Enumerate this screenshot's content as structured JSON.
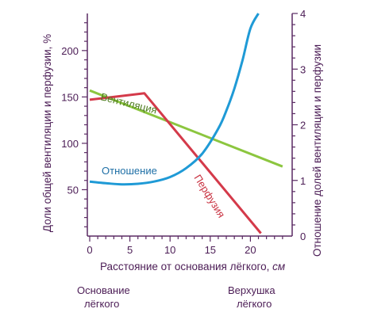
{
  "chart_data": {
    "type": "line",
    "colors": {
      "axis": "#5a2a63",
      "ventilation": "#8cc63f",
      "perfusion": "#d43a4a",
      "ratio": "#1f9ad6",
      "ventilation_label": "#4f7d20",
      "perfusion_label": "#c8303f",
      "ratio_label": "#1e6fa6"
    },
    "x_axis": {
      "label": "Расстояние от основания лёгкого, ",
      "unit": "см",
      "range": [
        0,
        24
      ],
      "ticks": [
        "0",
        "5",
        "10",
        "15",
        "20"
      ],
      "tick_values": [
        0,
        5,
        10,
        15,
        20
      ],
      "minor_tick_step": 1
    },
    "y_left": {
      "label": "Доли общей вентиляции и перфузии, %",
      "range": [
        0,
        240
      ],
      "ticks": [
        "50",
        "100",
        "150",
        "200"
      ],
      "tick_values": [
        50,
        100,
        150,
        200
      ],
      "minor_tick_step": 10
    },
    "y_right": {
      "label": "Отношение долей вентиляции и перфузии",
      "range": [
        0,
        4
      ],
      "ticks": [
        "0",
        "1",
        "2",
        "3",
        "4"
      ],
      "tick_values": [
        0,
        1,
        2,
        3,
        4
      ],
      "minor_tick_step": 0.2
    },
    "end_labels": {
      "base_line1": "Основание",
      "base_line2": "лёгкого",
      "apex_line1": "Верхушка",
      "apex_line2": "лёгкого"
    },
    "series": [
      {
        "name": "Вентиляция",
        "axis": "left",
        "x": [
          0,
          24
        ],
        "y": [
          157,
          75
        ]
      },
      {
        "name": "Перфузия",
        "axis": "left",
        "x": [
          0,
          6.8,
          21.3
        ],
        "y": [
          147,
          154,
          3
        ]
      },
      {
        "name": "Отношение",
        "axis": "right",
        "x": [
          0,
          2,
          4,
          6,
          8,
          10,
          12,
          14,
          16,
          17,
          18,
          19,
          20,
          21
        ],
        "y": [
          0.98,
          0.95,
          0.93,
          0.94,
          0.98,
          1.06,
          1.22,
          1.48,
          1.93,
          2.25,
          2.65,
          3.15,
          3.73,
          4.0
        ]
      }
    ]
  }
}
